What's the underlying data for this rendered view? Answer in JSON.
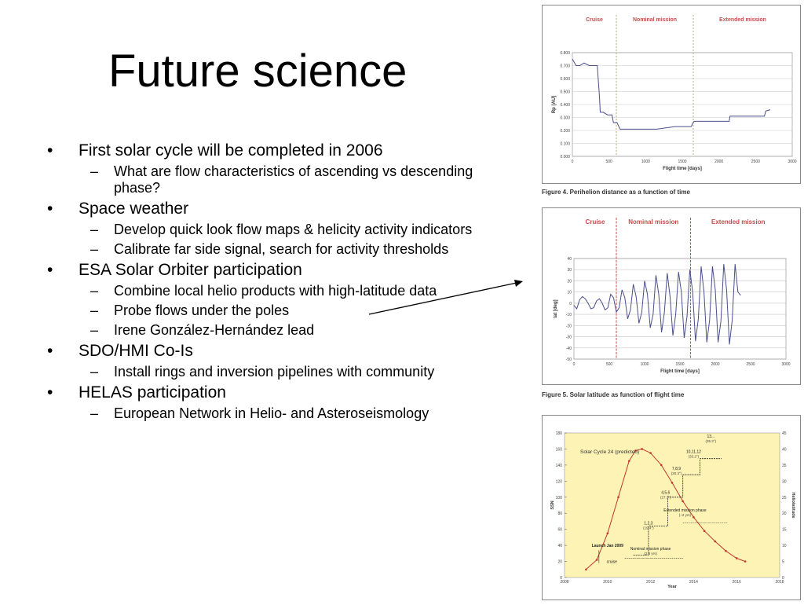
{
  "slide": {
    "title": "Future science",
    "bullets": [
      {
        "text": "First solar cycle will be completed in 2006",
        "subs": [
          "What are flow characteristics of ascending vs descending phase?"
        ]
      },
      {
        "text": "Space weather",
        "subs": [
          "Develop quick look flow maps & helicity activity indicators",
          "Calibrate far side signal, search for activity thresholds"
        ]
      },
      {
        "text": "ESA Solar Orbiter participation",
        "subs": [
          "Combine local helio products with high-latitude data",
          "Probe flows under the poles",
          "Irene González-Hernández lead"
        ]
      },
      {
        "text": "SDO/HMI Co-Is",
        "subs": [
          "Install rings and inversion pipelines with community"
        ]
      },
      {
        "text": "HELAS participation",
        "subs": [
          "European Network in Helio- and Asteroseismology"
        ]
      }
    ]
  },
  "chart_data": [
    {
      "type": "line",
      "caption": "Figure 4. Perihelion distance as a function of time",
      "phases": [
        "Cruise",
        "Nominal mission",
        "Extended mission"
      ],
      "phase_boundaries": [
        600,
        1650
      ],
      "xlabel": "Flight time [days]",
      "ylabel": "Rp [AU]",
      "xlim": [
        0,
        3000
      ],
      "ylim": [
        0,
        0.8
      ],
      "xticks": [
        "0",
        "500",
        "1000",
        "1500",
        "2000",
        "2500",
        "3000"
      ],
      "yticks": [
        "0.000",
        "0.100",
        "0.200",
        "0.300",
        "0.400",
        "0.500",
        "0.600",
        "0.700",
        "0.800"
      ],
      "x": [
        0,
        20,
        50,
        100,
        160,
        230,
        260,
        300,
        340,
        370,
        380,
        420,
        480,
        540,
        560,
        610,
        650,
        700,
        900,
        1150,
        1400,
        1620,
        1660,
        1900,
        2140,
        2150,
        2400,
        2620,
        2640,
        2700
      ],
      "y": [
        0.75,
        0.73,
        0.7,
        0.7,
        0.72,
        0.7,
        0.7,
        0.7,
        0.7,
        0.46,
        0.34,
        0.34,
        0.32,
        0.32,
        0.26,
        0.26,
        0.21,
        0.21,
        0.21,
        0.21,
        0.23,
        0.23,
        0.27,
        0.27,
        0.27,
        0.31,
        0.31,
        0.31,
        0.35,
        0.36
      ]
    },
    {
      "type": "line",
      "caption": "Figure 5. Solar latitude as function of flight time",
      "phases": [
        "Cruise",
        "Nominal mission",
        "Extended mission"
      ],
      "phase_boundaries": [
        600,
        1650
      ],
      "xlabel": "Flight time [days]",
      "ylabel": "lat [deg]",
      "xlim": [
        0,
        3000
      ],
      "ylim": [
        -50,
        40
      ],
      "xticks": [
        "0",
        "500",
        "1000",
        "1500",
        "2000",
        "2500",
        "3000"
      ],
      "yticks": [
        "-50",
        "-40",
        "-30",
        "-20",
        "-10",
        "0",
        "10",
        "20",
        "30",
        "40"
      ],
      "x": [
        0,
        40,
        80,
        120,
        160,
        200,
        240,
        280,
        320,
        360,
        400,
        440,
        480,
        520,
        560,
        600,
        640,
        680,
        720,
        760,
        800,
        840,
        880,
        920,
        960,
        1000,
        1040,
        1080,
        1120,
        1160,
        1200,
        1240,
        1280,
        1320,
        1360,
        1400,
        1440,
        1480,
        1520,
        1560,
        1600,
        1640,
        1680,
        1720,
        1760,
        1800,
        1840,
        1880,
        1920,
        1960,
        2000,
        2040,
        2080,
        2120,
        2160,
        2200,
        2240,
        2280,
        2320,
        2360
      ],
      "y": [
        -2,
        -5,
        3,
        6,
        4,
        0,
        -5,
        -4,
        2,
        4,
        0,
        -6,
        -4,
        8,
        5,
        -8,
        -4,
        12,
        5,
        -14,
        -6,
        17,
        6,
        -18,
        -8,
        20,
        8,
        -22,
        -10,
        25,
        8,
        -26,
        -8,
        27,
        6,
        -29,
        -10,
        28,
        10,
        -31,
        -12,
        30,
        10,
        -34,
        -14,
        33,
        10,
        -35,
        -15,
        33,
        12,
        -35,
        -16,
        35,
        12,
        -37,
        -15,
        35,
        10,
        7
      ]
    },
    {
      "type": "line",
      "title": "Solar Cycle 24 (predicted)",
      "xlabel": "Year",
      "ylabel": "SSN",
      "y2label": "Heliolatitude",
      "xlim": [
        2008,
        2018
      ],
      "ylim": [
        0,
        180
      ],
      "y2lim": [
        0,
        45
      ],
      "xticks": [
        "2008",
        "2010",
        "2012",
        "2014",
        "2016",
        "2018"
      ],
      "yticks": [
        "0",
        "20",
        "40",
        "60",
        "80",
        "100",
        "120",
        "140",
        "160",
        "180"
      ],
      "y2ticks": [
        "0",
        "5",
        "10",
        "15",
        "20",
        "25",
        "30",
        "35",
        "40",
        "45"
      ],
      "series": [
        {
          "name": "Solar Cycle 24 (predicted)",
          "x": [
            2009.0,
            2009.5,
            2010.0,
            2010.5,
            2011.0,
            2011.3,
            2011.6,
            2012.0,
            2012.5,
            2013.0,
            2013.5,
            2014.0,
            2014.5,
            2015.0,
            2015.5,
            2016.0,
            2016.4
          ],
          "y": [
            10,
            22,
            55,
            100,
            145,
            158,
            160,
            155,
            140,
            118,
            95,
            75,
            58,
            45,
            33,
            24,
            20
          ]
        },
        {
          "name": "Heliolatitude",
          "x": [
            2011.2,
            2011.9,
            2011.9,
            2012.8,
            2012.8,
            2013.5,
            2013.5,
            2014.3,
            2014.3,
            2015.3
          ],
          "y": [
            7,
            7,
            16,
            16,
            25,
            25,
            32,
            32,
            37,
            37
          ]
        }
      ],
      "annotations": [
        {
          "text": "1,2,3",
          "note": "(19.4°)"
        },
        {
          "text": "4,5,6",
          "note": "(27.7°)"
        },
        {
          "text": "7,8,9",
          "note": "(30.3°)"
        },
        {
          "text": "10,11,12",
          "note": "(33.2°)"
        },
        {
          "text": "13...",
          "note": "(35.3°)"
        },
        {
          "text": "Launch Jan 2009"
        },
        {
          "text": "cruise"
        },
        {
          "text": "Nominal mission phase",
          "note": "(2.8 yrs)"
        },
        {
          "text": "Extended mission phase",
          "note": "(~2 yrs)"
        }
      ]
    }
  ]
}
